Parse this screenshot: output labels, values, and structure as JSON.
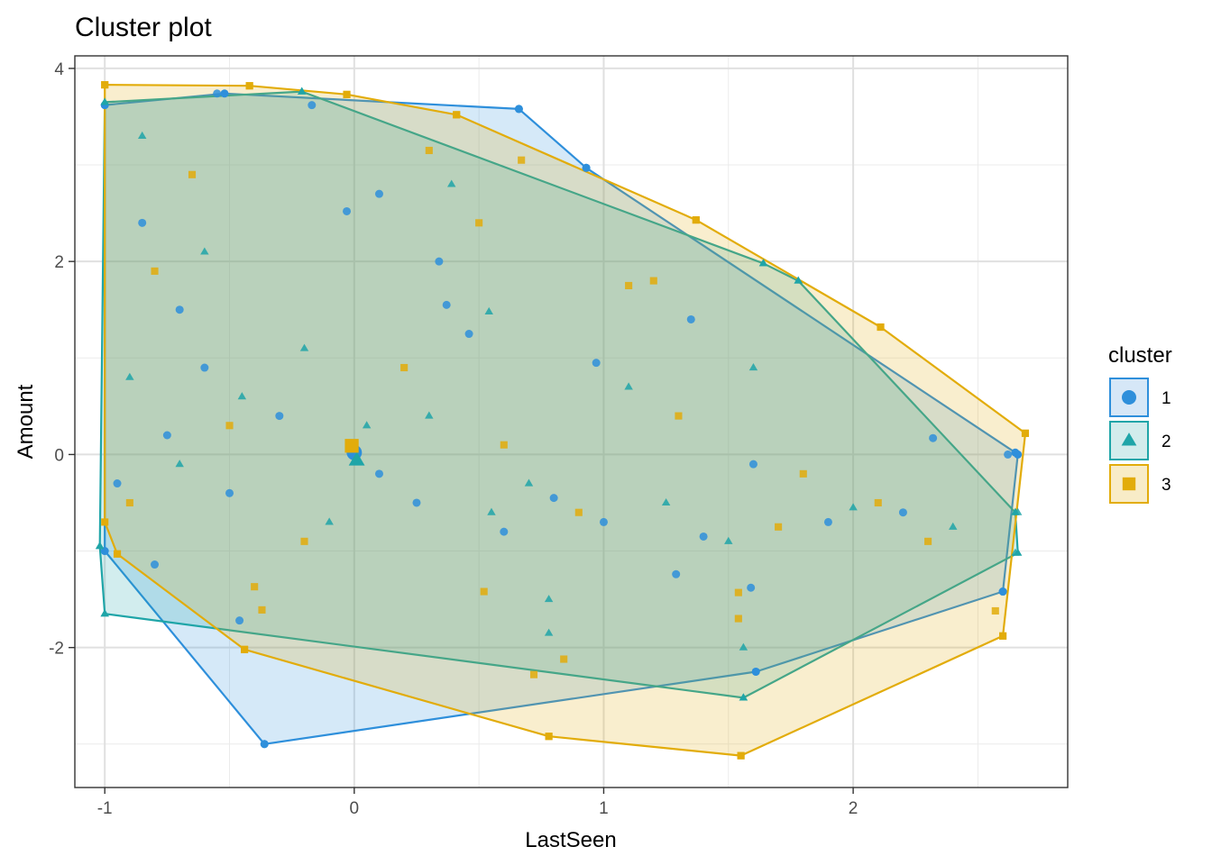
{
  "chart_data": {
    "type": "scatter",
    "title": "Cluster plot",
    "xlabel": "LastSeen",
    "ylabel": "Amount",
    "xlim": [
      -1.12,
      2.86
    ],
    "ylim": [
      -3.45,
      4.13
    ],
    "x_ticks": [
      -1,
      0,
      1,
      2
    ],
    "y_ticks": [
      -2,
      0,
      2,
      4
    ],
    "x_tick_labels": [
      "-1",
      "0",
      "1",
      "2"
    ],
    "y_tick_labels": [
      "-2",
      "0",
      "2",
      "4"
    ],
    "grid": true,
    "legend": {
      "title": "cluster",
      "position": "right",
      "entries": [
        {
          "label": "1",
          "shape": "circle",
          "color": "#2E8FDB",
          "fill": "#D6E7F7"
        },
        {
          "label": "2",
          "shape": "triangle",
          "color": "#1FA5A8",
          "fill": "#D2ECEC"
        },
        {
          "label": "3",
          "shape": "square",
          "color": "#E2AC0A",
          "fill": "#F8ECC7"
        }
      ]
    },
    "series": [
      {
        "name": "1",
        "color": "#2E8FDB",
        "hull": [
          [
            -1.0,
            -1.0
          ],
          [
            -0.36,
            -3.0
          ],
          [
            1.61,
            -2.25
          ],
          [
            2.6,
            -1.42
          ],
          [
            2.66,
            0.0
          ],
          [
            2.65,
            0.02
          ],
          [
            0.93,
            2.97
          ],
          [
            0.66,
            3.58
          ],
          [
            -0.52,
            3.74
          ],
          [
            -1.0,
            3.62
          ]
        ],
        "centroid": [
          0.0,
          0.02
        ],
        "points": [
          [
            -0.55,
            3.74
          ],
          [
            -0.17,
            3.62
          ],
          [
            0.66,
            3.58
          ],
          [
            0.93,
            2.97
          ],
          [
            0.1,
            2.7
          ],
          [
            -0.03,
            2.52
          ],
          [
            0.34,
            2.0
          ],
          [
            0.37,
            1.55
          ],
          [
            1.35,
            1.4
          ],
          [
            0.46,
            1.25
          ],
          [
            0.97,
            0.95
          ],
          [
            1.6,
            -0.1
          ],
          [
            2.32,
            0.17
          ],
          [
            2.62,
            0.0
          ],
          [
            2.6,
            -1.42
          ],
          [
            1.61,
            -2.25
          ],
          [
            1.59,
            -1.38
          ],
          [
            1.29,
            -1.24
          ],
          [
            -0.46,
            -1.72
          ],
          [
            -0.36,
            -3.0
          ],
          [
            -0.8,
            -1.14
          ],
          [
            -0.7,
            1.5
          ],
          [
            -0.85,
            2.4
          ],
          [
            -0.6,
            0.9
          ],
          [
            -0.3,
            0.4
          ],
          [
            0.25,
            -0.5
          ],
          [
            0.6,
            -0.8
          ],
          [
            1.0,
            -0.7
          ],
          [
            1.4,
            -0.85
          ],
          [
            1.9,
            -0.7
          ],
          [
            2.2,
            -0.6
          ],
          [
            -0.95,
            -0.3
          ],
          [
            -0.75,
            0.2
          ],
          [
            -0.5,
            -0.4
          ],
          [
            0.1,
            -0.2
          ],
          [
            0.8,
            -0.45
          ]
        ]
      },
      {
        "name": "2",
        "color": "#1FA5A8",
        "hull": [
          [
            -1.0,
            -1.65
          ],
          [
            1.56,
            -2.52
          ],
          [
            2.66,
            -1.02
          ],
          [
            2.65,
            -0.6
          ],
          [
            1.78,
            1.8
          ],
          [
            1.64,
            1.98
          ],
          [
            -0.21,
            3.76
          ],
          [
            -1.0,
            3.65
          ],
          [
            -1.02,
            -0.95
          ]
        ],
        "centroid": [
          0.01,
          -0.06
        ],
        "points": [
          [
            -0.21,
            3.76
          ],
          [
            1.64,
            1.98
          ],
          [
            1.78,
            1.8
          ],
          [
            1.56,
            -2.52
          ],
          [
            1.56,
            -2.0
          ],
          [
            -1.0,
            -1.65
          ],
          [
            -1.02,
            -0.95
          ],
          [
            0.39,
            2.8
          ],
          [
            0.54,
            1.48
          ],
          [
            0.78,
            -1.85
          ],
          [
            0.78,
            -1.5
          ],
          [
            1.6,
            0.9
          ],
          [
            2.65,
            -1.02
          ],
          [
            2.66,
            -0.6
          ],
          [
            -0.2,
            1.1
          ],
          [
            0.3,
            0.4
          ],
          [
            0.7,
            -0.3
          ],
          [
            1.1,
            0.7
          ],
          [
            1.5,
            -0.9
          ],
          [
            2.0,
            -0.55
          ],
          [
            -0.9,
            0.8
          ],
          [
            -0.7,
            -0.1
          ],
          [
            -0.45,
            0.6
          ],
          [
            -0.1,
            -0.7
          ],
          [
            0.55,
            -0.6
          ],
          [
            1.25,
            -0.5
          ],
          [
            2.4,
            -0.75
          ],
          [
            -0.85,
            3.3
          ],
          [
            -0.6,
            2.1
          ],
          [
            0.05,
            0.3
          ]
        ]
      },
      {
        "name": "3",
        "color": "#E2AC0A",
        "hull": [
          [
            -1.0,
            3.83
          ],
          [
            -0.42,
            3.82
          ],
          [
            -0.03,
            3.73
          ],
          [
            0.41,
            3.52
          ],
          [
            1.37,
            2.43
          ],
          [
            2.11,
            1.32
          ],
          [
            2.69,
            0.22
          ],
          [
            2.6,
            -1.88
          ],
          [
            1.55,
            -3.12
          ],
          [
            0.78,
            -2.92
          ],
          [
            -0.44,
            -2.02
          ],
          [
            -0.95,
            -1.03
          ],
          [
            -1.0,
            -0.7
          ]
        ],
        "centroid": [
          -0.01,
          0.09
        ],
        "points": [
          [
            -1.0,
            3.83
          ],
          [
            -0.42,
            3.82
          ],
          [
            -0.03,
            3.73
          ],
          [
            0.41,
            3.52
          ],
          [
            1.37,
            2.43
          ],
          [
            2.11,
            1.32
          ],
          [
            2.69,
            0.22
          ],
          [
            2.6,
            -1.88
          ],
          [
            1.55,
            -3.12
          ],
          [
            0.78,
            -2.92
          ],
          [
            -0.44,
            -2.02
          ],
          [
            -0.95,
            -1.03
          ],
          [
            0.67,
            3.05
          ],
          [
            0.3,
            3.15
          ],
          [
            0.5,
            2.4
          ],
          [
            1.1,
            1.75
          ],
          [
            1.2,
            1.8
          ],
          [
            0.84,
            -2.12
          ],
          [
            0.72,
            -2.28
          ],
          [
            0.52,
            -1.42
          ],
          [
            1.54,
            -1.7
          ],
          [
            1.54,
            -1.43
          ],
          [
            2.57,
            -1.62
          ],
          [
            -0.37,
            -1.61
          ],
          [
            -0.4,
            -1.37
          ],
          [
            0.2,
            0.9
          ],
          [
            0.6,
            0.1
          ],
          [
            1.3,
            0.4
          ],
          [
            1.8,
            -0.2
          ],
          [
            2.3,
            -0.9
          ],
          [
            -0.8,
            1.9
          ],
          [
            -0.5,
            0.3
          ],
          [
            -0.2,
            -0.9
          ],
          [
            0.9,
            -0.6
          ],
          [
            1.7,
            -0.75
          ],
          [
            2.1,
            -0.5
          ],
          [
            -0.9,
            -0.5
          ],
          [
            -0.65,
            2.9
          ]
        ]
      }
    ]
  }
}
